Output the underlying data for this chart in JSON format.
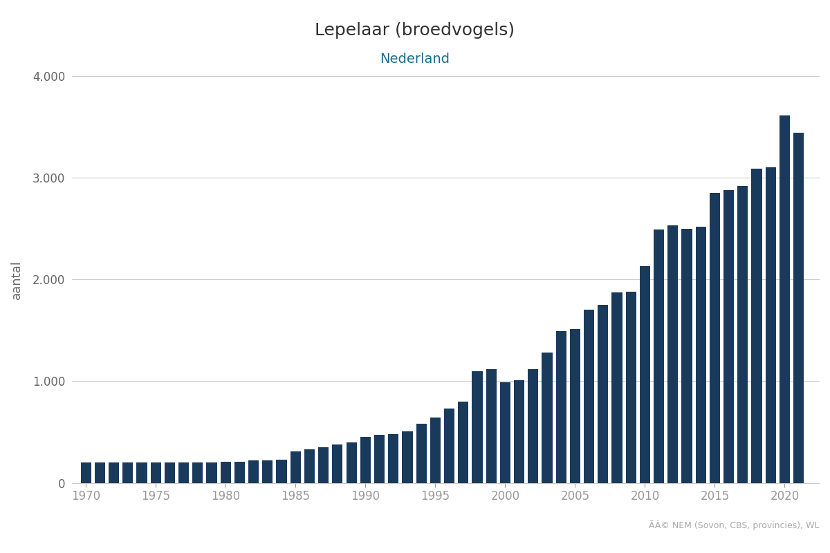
{
  "title": "Lepelaar (broedvogels)",
  "subtitle": "Nederland",
  "ylabel": "aantal",
  "source_text": "ÃÂ© NEM (Sovon, CBS, provincies), WL",
  "bar_color": "#1a3a5c",
  "background_color": "#ffffff",
  "years": [
    1970,
    1971,
    1972,
    1973,
    1974,
    1975,
    1976,
    1977,
    1978,
    1979,
    1980,
    1981,
    1982,
    1983,
    1984,
    1985,
    1986,
    1987,
    1988,
    1989,
    1990,
    1991,
    1992,
    1993,
    1994,
    1995,
    1996,
    1997,
    1998,
    1999,
    2000,
    2001,
    2002,
    2003,
    2004,
    2005,
    2006,
    2007,
    2008,
    2009,
    2010,
    2011,
    2012,
    2013,
    2014,
    2015,
    2016,
    2017,
    2018,
    2019,
    2020,
    2021
  ],
  "values": [
    200,
    200,
    200,
    200,
    200,
    200,
    200,
    200,
    200,
    200,
    210,
    210,
    220,
    220,
    230,
    310,
    330,
    350,
    380,
    400,
    450,
    470,
    480,
    510,
    580,
    640,
    730,
    800,
    1100,
    1120,
    990,
    1010,
    1120,
    1280,
    1490,
    1510,
    1700,
    1750,
    1870,
    1880,
    2130,
    2490,
    2530,
    2500,
    2520,
    2850,
    2880,
    2920,
    3090,
    3100,
    3610,
    3440
  ],
  "ylim": [
    0,
    4000
  ],
  "yticks": [
    0,
    1000,
    2000,
    3000,
    4000
  ],
  "ytick_labels": [
    "0",
    "1.000",
    "2.000",
    "3.000",
    "4.000"
  ],
  "xticks": [
    1970,
    1975,
    1980,
    1985,
    1990,
    1995,
    2000,
    2005,
    2010,
    2015,
    2020
  ],
  "title_fontsize": 18,
  "subtitle_fontsize": 14,
  "axis_label_fontsize": 13,
  "tick_fontsize": 12,
  "grid_color": "#cccccc",
  "tick_color": "#999999",
  "subtitle_color": "#1a6b8a"
}
